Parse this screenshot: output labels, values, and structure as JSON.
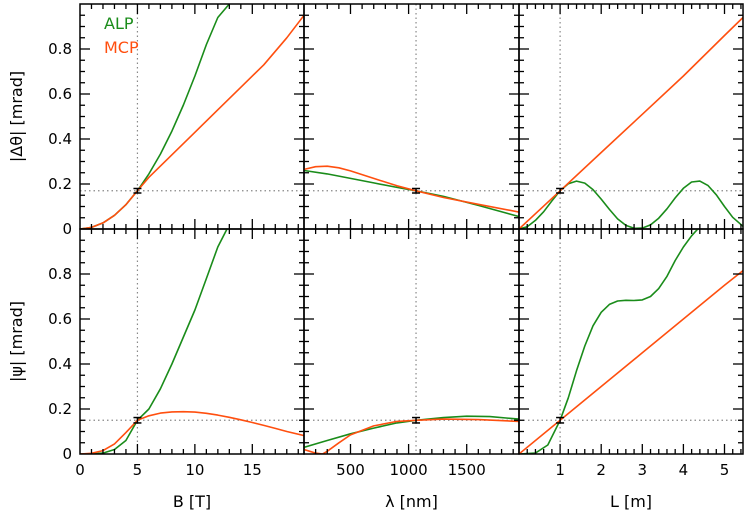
{
  "figure": {
    "legend": [
      {
        "label": "ALP",
        "color": "#1a8c1a"
      },
      {
        "label": "MCP",
        "color": "#ff4f0f"
      }
    ],
    "colors": {
      "alp": "#1a8c1a",
      "mcp": "#ff4f0f",
      "reference": "#888888",
      "errorbar": "#000000"
    }
  },
  "chart_data": [
    {
      "type": "line",
      "panel": "top-left",
      "xlabel": "B [T]",
      "ylabel": "|Δθ| [mrad]",
      "xlim": [
        0,
        19.5
      ],
      "ylim": [
        0,
        1.0
      ],
      "xticks": [
        0,
        5,
        10,
        15
      ],
      "yticks": [
        0,
        0.2,
        0.4,
        0.6,
        0.8
      ],
      "reference": {
        "x": 5,
        "y": 0.17,
        "yerr": 0.01
      },
      "series": [
        {
          "name": "ALP",
          "x": [
            0,
            1,
            2,
            3,
            4,
            5,
            6,
            7,
            8,
            9,
            10,
            11,
            12,
            13
          ],
          "values": [
            0,
            0.007,
            0.027,
            0.061,
            0.108,
            0.17,
            0.245,
            0.333,
            0.435,
            0.551,
            0.68,
            0.82,
            0.94,
            1.0
          ]
        },
        {
          "name": "MCP",
          "x": [
            0,
            1,
            2,
            3,
            4,
            5,
            6,
            8,
            10,
            12,
            14,
            16,
            18,
            19.5
          ],
          "values": [
            0,
            0.007,
            0.027,
            0.061,
            0.108,
            0.17,
            0.23,
            0.33,
            0.43,
            0.53,
            0.63,
            0.73,
            0.85,
            0.95
          ]
        }
      ]
    },
    {
      "type": "line",
      "panel": "top-middle",
      "xlabel": "λ [nm]",
      "ylabel": "",
      "xlim": [
        100,
        1950
      ],
      "ylim": [
        0,
        1.0
      ],
      "xticks": [
        500,
        1000,
        1500
      ],
      "yticks": [
        0,
        0.2,
        0.4,
        0.6,
        0.8
      ],
      "reference": {
        "x": 1064,
        "y": 0.17,
        "yerr": 0.01
      },
      "series": [
        {
          "name": "ALP",
          "x": [
            100,
            300,
            500,
            700,
            900,
            1064,
            1300,
            1600,
            1950
          ],
          "values": [
            0.26,
            0.245,
            0.225,
            0.205,
            0.185,
            0.17,
            0.145,
            0.105,
            0.055
          ]
        },
        {
          "name": "MCP",
          "x": [
            100,
            200,
            300,
            400,
            500,
            700,
            900,
            1064,
            1300,
            1600,
            1950
          ],
          "values": [
            0.265,
            0.277,
            0.279,
            0.272,
            0.258,
            0.225,
            0.192,
            0.17,
            0.14,
            0.11,
            0.075
          ]
        }
      ]
    },
    {
      "type": "line",
      "panel": "top-right",
      "xlabel": "L [m]",
      "ylabel": "",
      "xlim": [
        0,
        5.45
      ],
      "ylim": [
        0,
        1.0
      ],
      "xticks": [
        1,
        2,
        3,
        4,
        5
      ],
      "yticks": [
        0,
        0.2,
        0.4,
        0.6,
        0.8
      ],
      "reference": {
        "x": 1,
        "y": 0.17,
        "yerr": 0.01
      },
      "series": [
        {
          "name": "ALP",
          "x": [
            0,
            0.2,
            0.4,
            0.6,
            0.8,
            1.0,
            1.2,
            1.4,
            1.6,
            1.8,
            2.0,
            2.2,
            2.4,
            2.6,
            2.8,
            3.0,
            3.2,
            3.4,
            3.6,
            3.8,
            4.0,
            4.2,
            4.4,
            4.6,
            4.8,
            5.0,
            5.2,
            5.45
          ],
          "values": [
            0,
            0.01,
            0.038,
            0.077,
            0.125,
            0.17,
            0.201,
            0.213,
            0.204,
            0.175,
            0.133,
            0.087,
            0.045,
            0.016,
            0.003,
            0.004,
            0.018,
            0.048,
            0.09,
            0.138,
            0.181,
            0.209,
            0.213,
            0.193,
            0.152,
            0.1,
            0.052,
            0.012
          ]
        },
        {
          "name": "MCP",
          "x": [
            0,
            1,
            2,
            3,
            4,
            5,
            5.45
          ],
          "values": [
            0,
            0.17,
            0.34,
            0.51,
            0.68,
            0.86,
            0.94
          ]
        }
      ]
    },
    {
      "type": "line",
      "panel": "bottom-left",
      "xlabel": "B [T]",
      "ylabel": "|ψ| [mrad]",
      "xlim": [
        0,
        19.5
      ],
      "ylim": [
        0,
        1.0
      ],
      "xticks": [
        0,
        5,
        10,
        15
      ],
      "yticks": [
        0,
        0.2,
        0.4,
        0.6,
        0.8
      ],
      "reference": {
        "x": 5,
        "y": 0.15,
        "yerr": 0.012
      },
      "series": [
        {
          "name": "ALP",
          "x": [
            0,
            1,
            2,
            3,
            4,
            5,
            6,
            7,
            8,
            9,
            10,
            11,
            12,
            12.8
          ],
          "values": [
            0,
            0.0001,
            0.004,
            0.02,
            0.06,
            0.15,
            0.2,
            0.29,
            0.4,
            0.52,
            0.64,
            0.78,
            0.92,
            1.0
          ]
        },
        {
          "name": "MCP",
          "x": [
            0,
            1,
            2,
            3,
            4,
            5,
            6,
            7,
            8,
            9,
            10,
            11,
            12,
            13,
            14,
            15,
            16,
            17,
            18,
            19.5
          ],
          "values": [
            0,
            0.003,
            0.015,
            0.045,
            0.095,
            0.15,
            0.17,
            0.182,
            0.187,
            0.188,
            0.186,
            0.181,
            0.173,
            0.163,
            0.152,
            0.14,
            0.127,
            0.114,
            0.1,
            0.082
          ]
        }
      ]
    },
    {
      "type": "line",
      "panel": "bottom-middle",
      "xlabel": "λ [nm]",
      "ylabel": "",
      "xlim": [
        100,
        1950
      ],
      "ylim": [
        0,
        1.0
      ],
      "xticks": [
        500,
        1000,
        1500
      ],
      "yticks": [
        0,
        0.2,
        0.4,
        0.6,
        0.8
      ],
      "reference": {
        "x": 1064,
        "y": 0.15,
        "yerr": 0.012
      },
      "series": [
        {
          "name": "ALP",
          "x": [
            100,
            300,
            500,
            700,
            900,
            1064,
            1300,
            1500,
            1700,
            1950
          ],
          "values": [
            0.03,
            0.06,
            0.09,
            0.115,
            0.138,
            0.15,
            0.162,
            0.168,
            0.166,
            0.155
          ]
        },
        {
          "name": "MCP",
          "x": [
            100,
            150,
            200,
            260,
            300,
            400,
            500,
            700,
            900,
            1064,
            1300,
            1600,
            1950
          ],
          "values": [
            0.02,
            0.012,
            0.004,
            0.0,
            0.012,
            0.05,
            0.085,
            0.125,
            0.145,
            0.15,
            0.155,
            0.153,
            0.145
          ]
        }
      ]
    },
    {
      "type": "line",
      "panel": "bottom-right",
      "xlabel": "L [m]",
      "ylabel": "",
      "xlim": [
        0,
        5.45
      ],
      "ylim": [
        0,
        1.0
      ],
      "xticks": [
        1,
        2,
        3,
        4,
        5
      ],
      "yticks": [
        0,
        0.2,
        0.4,
        0.6,
        0.8
      ],
      "reference": {
        "x": 1,
        "y": 0.15,
        "yerr": 0.012
      },
      "series": [
        {
          "name": "ALP",
          "x": [
            0,
            0.4,
            0.7,
            1.0,
            1.2,
            1.4,
            1.6,
            1.8,
            2.0,
            2.2,
            2.4,
            2.6,
            2.8,
            3.0,
            3.2,
            3.4,
            3.6,
            3.8,
            4.0,
            4.2,
            4.35
          ],
          "values": [
            0,
            0.004,
            0.04,
            0.15,
            0.25,
            0.37,
            0.48,
            0.57,
            0.63,
            0.665,
            0.68,
            0.683,
            0.682,
            0.685,
            0.7,
            0.735,
            0.79,
            0.86,
            0.92,
            0.97,
            1.0
          ]
        },
        {
          "name": "MCP",
          "x": [
            0,
            1,
            2,
            3,
            4,
            5,
            5.45
          ],
          "values": [
            0,
            0.15,
            0.3,
            0.45,
            0.6,
            0.75,
            0.815
          ]
        }
      ]
    }
  ]
}
